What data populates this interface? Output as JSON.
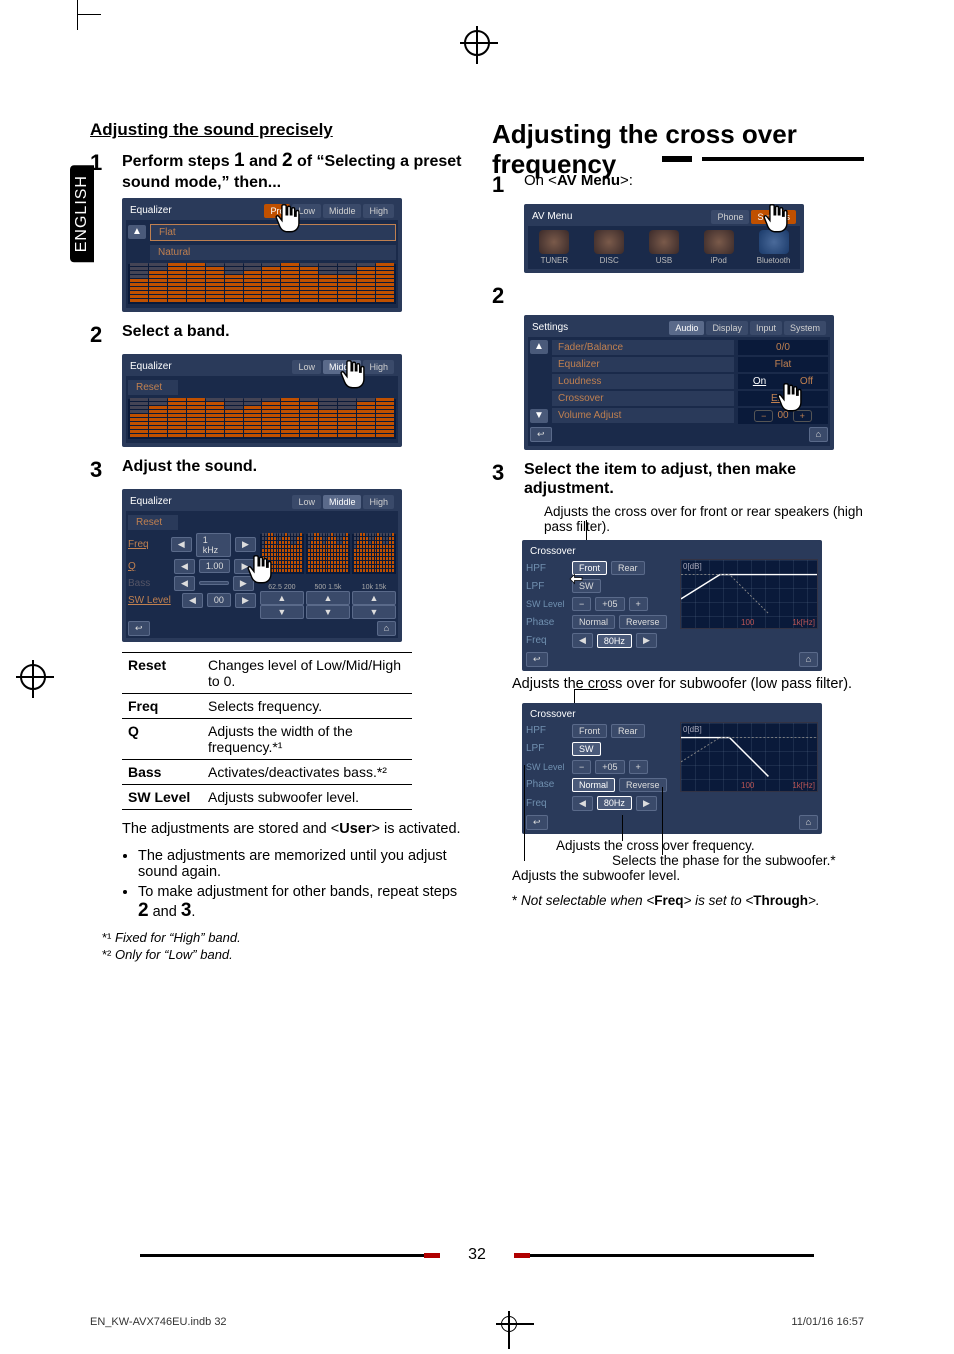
{
  "page": {
    "language_tab": "ENGLISH",
    "number": "32",
    "footer_left": "EN_KW-AVX746EU.indb   32",
    "footer_right": "11/01/16   16:57"
  },
  "left": {
    "section_title": "Adjusting the sound precisely",
    "step1": {
      "num": "1",
      "text_a": "Perform steps ",
      "one": "1",
      "text_b": " and ",
      "two": "2",
      "text_c": " of “Selecting a preset sound mode,” then..."
    },
    "eq_ui1": {
      "title": "Equalizer",
      "tabs": {
        "pro": "Pro",
        "low": "Low",
        "middle": "Middle",
        "high": "High"
      },
      "rows": {
        "flat": "Flat",
        "natural": "Natural"
      }
    },
    "step2": {
      "num": "2",
      "text": "Select a band."
    },
    "eq_ui2": {
      "title": "Equalizer",
      "tabs": {
        "low": "Low",
        "middle": "Middle",
        "high": "High"
      },
      "row": "Reset"
    },
    "step3": {
      "num": "3",
      "text": "Adjust the sound."
    },
    "eq_ui3": {
      "title": "Equalizer",
      "tabs": {
        "low": "Low",
        "middle": "Middle",
        "high": "High"
      },
      "reset": "Reset",
      "params": {
        "freq_label": "Freq",
        "freq_val": "1 kHz",
        "q_label": "Q",
        "q_val": "1.00",
        "bass_label": "Bass",
        "sw_label": "SW Level",
        "sw_val": "00"
      },
      "scale": {
        "a": "62.5 200",
        "b": "500 1.5k",
        "c": "10k 15k"
      }
    },
    "table": {
      "rows": [
        {
          "k": "Reset",
          "v": "Changes level of Low/Mid/High to 0."
        },
        {
          "k": "Freq",
          "v": "Selects frequency."
        },
        {
          "k": "Q",
          "v": "Adjusts the width of the frequency.*¹"
        },
        {
          "k": "Bass",
          "v": "Activates/deactivates bass.*²"
        },
        {
          "k": "SW Level",
          "v": "Adjusts subwoofer level."
        }
      ]
    },
    "stored_a": "The adjustments are stored and <",
    "stored_user": "User",
    "stored_b": "> is activated.",
    "bullets": {
      "b1": "The adjustments are memorized until you adjust sound again.",
      "b2_a": "To make adjustment for other bands, repeat steps ",
      "b2_two": "2",
      "b2_b": " and ",
      "b2_three": "3",
      "b2_c": "."
    },
    "fn1_a": "*¹ ",
    "fn1_b": "Fixed for “High” band.",
    "fn2_a": "*² ",
    "fn2_b": "Only for “Low” band."
  },
  "right": {
    "h1": "Adjusting the cross over frequency",
    "step1": {
      "num": "1",
      "text_a": "On <",
      "bold": "AV Menu",
      "text_b": ">:"
    },
    "av_menu": {
      "title": "AV Menu",
      "right_tabs": {
        "phone": "Phone",
        "settings": "Settings"
      },
      "sources": {
        "tuner": "TUNER",
        "disc": "DISC",
        "usb": "USB",
        "ipod": "iPod",
        "bt": "Bluetooth"
      }
    },
    "step2": {
      "num": "2"
    },
    "settings_ui": {
      "title": "Settings",
      "tabs": {
        "audio": "Audio",
        "display": "Display",
        "input": "Input",
        "system": "System"
      },
      "rows": [
        {
          "label": "Fader/Balance",
          "val": "0/0"
        },
        {
          "label": "Equalizer",
          "val": "Flat"
        },
        {
          "label": "Loudness",
          "on": "On",
          "off": "Off"
        },
        {
          "label": "Crossover",
          "val": "Enter"
        },
        {
          "label": "Volume Adjust",
          "val": "00",
          "adjust": true
        }
      ]
    },
    "step3": {
      "num": "3",
      "text": "Select the item to adjust, then make adjustment.",
      "sub": "Adjusts the cross over for front or rear speakers (high pass filter)."
    },
    "xover1": {
      "title": "Crossover",
      "hpf": "HPF",
      "front": "Front",
      "rear": "Rear",
      "lpf": "LPF",
      "sw": "SW",
      "swlevel_lbl": "SW Level",
      "swlevel_val": "+05",
      "phase": "Phase",
      "normal": "Normal",
      "reverse": "Reverse",
      "freq_lbl": "Freq",
      "freq_val": "80Hz",
      "graph_ylabel": "0[dB]",
      "graph_x1": "100",
      "graph_x2": "1k[Hz]"
    },
    "caption1": "Adjusts the cross over for subwoofer (low pass filter).",
    "xover2": {
      "title": "Crossover",
      "hpf": "HPF",
      "front": "Front",
      "rear": "Rear",
      "lpf": "LPF",
      "sw": "SW",
      "swlevel_lbl": "SW Level",
      "swlevel_val": "+05",
      "phase": "Phase",
      "normal": "Normal",
      "reverse": "Reverse",
      "freq_lbl": "Freq",
      "freq_val": "80Hz",
      "graph_ylabel": "0[dB]",
      "graph_x1": "100",
      "graph_x2": "1k[Hz]"
    },
    "caption_freq": "Adjusts the cross over frequency.",
    "caption_phase": "Selects the phase for the subwoofer.*",
    "caption_swlevel": "Adjusts the subwoofer level.",
    "footnote_a": "* ",
    "footnote_b": "Not selectable when <",
    "footnote_freq": "Freq",
    "footnote_c": "> is set to <",
    "footnote_through": "Through",
    "footnote_d": ">."
  }
}
